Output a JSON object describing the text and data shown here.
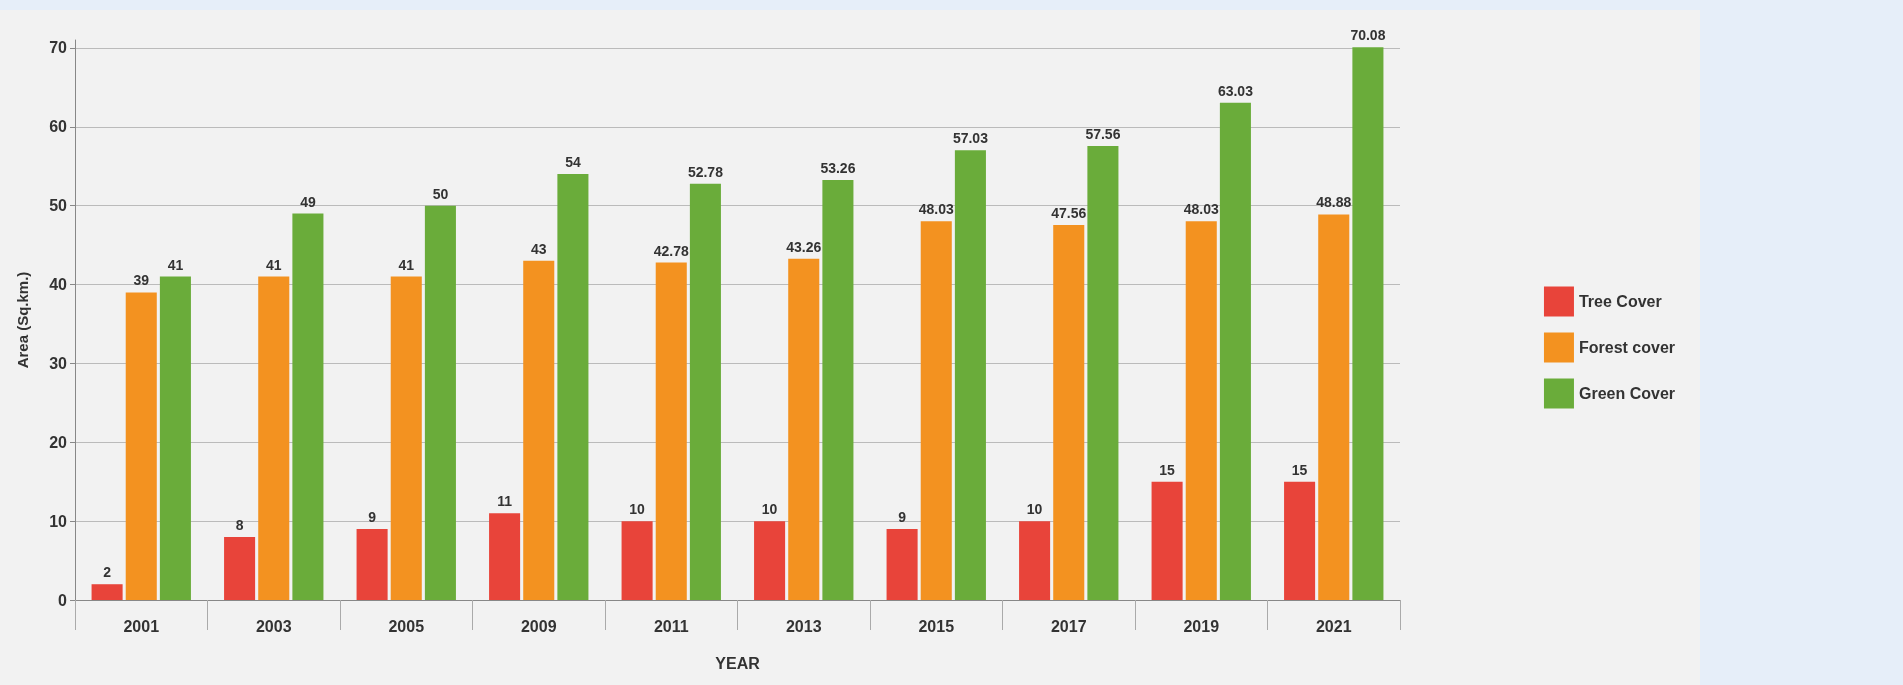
{
  "chart_data": {
    "type": "bar",
    "xlabel": "YEAR",
    "ylabel": "Area (Sq.km.)",
    "categories": [
      "2001",
      "2003",
      "2005",
      "2009",
      "2011",
      "2013",
      "2015",
      "2017",
      "2019",
      "2021"
    ],
    "series": [
      {
        "name": "Tree Cover",
        "color": "#e8443a",
        "values": [
          2,
          8,
          9,
          11,
          10,
          10,
          9,
          10,
          15,
          15
        ]
      },
      {
        "name": "Forest cover",
        "color": "#f39220",
        "values": [
          39,
          41,
          41,
          43,
          42.78,
          43.26,
          48.03,
          47.56,
          48.03,
          48.88
        ]
      },
      {
        "name": "Green Cover",
        "color": "#6aac3a",
        "values": [
          41,
          49,
          50,
          54,
          52.78,
          53.26,
          57.03,
          57.56,
          63.03,
          70.08
        ]
      }
    ],
    "ylim": [
      0,
      71
    ],
    "yticks": [
      0,
      10,
      20,
      30,
      40,
      50,
      60,
      70
    ],
    "grid": "y",
    "legend": "right",
    "data_labels": true
  }
}
